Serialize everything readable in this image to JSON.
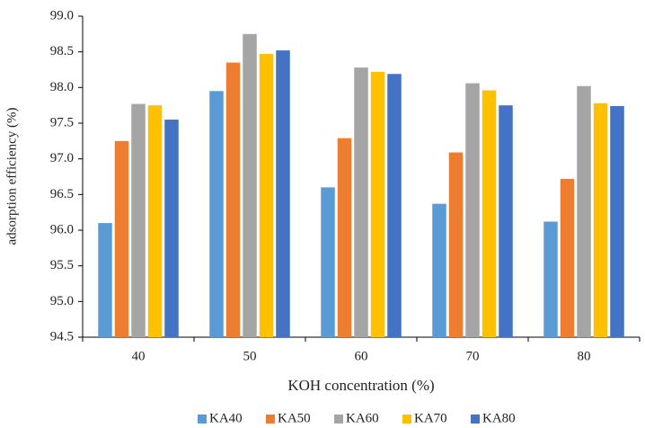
{
  "chart_data": {
    "type": "bar",
    "y_label": "adsorption efficiency (%)",
    "x_label": "KOH concentration (%)",
    "categories": [
      "40",
      "50",
      "60",
      "70",
      "80"
    ],
    "series": [
      {
        "name": "KA40",
        "color": "#5b9bd5",
        "values": [
          96.1,
          97.95,
          96.6,
          96.37,
          96.12
        ]
      },
      {
        "name": "KA50",
        "color": "#ed7d31",
        "values": [
          97.25,
          98.35,
          97.29,
          97.09,
          96.72
        ]
      },
      {
        "name": "KA60",
        "color": "#a5a5a5",
        "values": [
          97.77,
          98.75,
          98.28,
          98.06,
          98.02
        ]
      },
      {
        "name": "KA70",
        "color": "#ffc000",
        "values": [
          97.75,
          98.47,
          98.22,
          97.96,
          97.78
        ]
      },
      {
        "name": "KA80",
        "color": "#4472c4",
        "values": [
          97.55,
          98.52,
          98.19,
          97.75,
          97.74
        ]
      }
    ],
    "ylim": [
      94.5,
      99
    ],
    "yticks": [
      94.5,
      {
        "value": 95,
        "label": "95.0"
      },
      95.5,
      {
        "value": 96,
        "label": "96.0"
      },
      96.5,
      {
        "value": 97,
        "label": "97.0"
      },
      97.5,
      {
        "value": 98,
        "label": "98.0"
      },
      98.5,
      {
        "value": 99,
        "label": "99.0"
      }
    ],
    "grid": false,
    "legend": "bottom"
  }
}
